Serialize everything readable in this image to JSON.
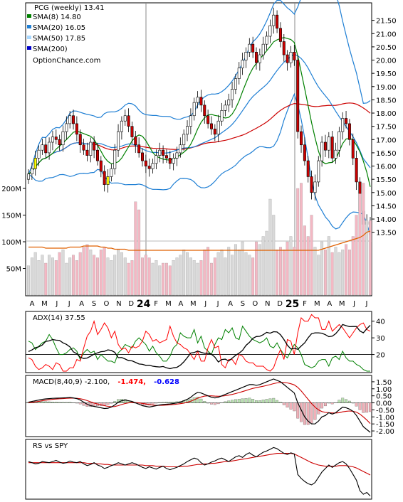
{
  "header": {
    "title": "PCG (weekly) 13.41",
    "site": "OptionChance.com",
    "legend": [
      {
        "label": "SMA(8) 14.80",
        "color": "#008000"
      },
      {
        "label": "SMA(20) 16.05",
        "color": "#1f7fd4"
      },
      {
        "label": "SMA(50) 17.85",
        "color": "#a8d8ff"
      },
      {
        "label": "SMA(200)",
        "color": "#0000cc"
      }
    ]
  },
  "price_axis": {
    "min": 13.25,
    "max": 22.0,
    "ticks": [
      "21.50",
      "21.00",
      "20.50",
      "20.00",
      "19.50",
      "19.00",
      "18.50",
      "18.00",
      "17.50",
      "17.00",
      "16.50",
      "16.00",
      "15.50",
      "15.00",
      "14.50",
      "14.00",
      "13.50"
    ]
  },
  "volume_axis": {
    "ticks": [
      "200M",
      "150M",
      "100M",
      "50M"
    ]
  },
  "month_axis": [
    "A",
    "M",
    "J",
    "J",
    "A",
    "S",
    "O",
    "N",
    "D",
    "24",
    "F",
    "M",
    "A",
    "M",
    "J",
    "J",
    "A",
    "S",
    "O",
    "N",
    "D",
    "25",
    "F",
    "M",
    "A",
    "M",
    "J",
    "J"
  ],
  "adx_panel": {
    "label": "ADX(14) 37.55",
    "ticks": [
      "40",
      "30",
      "20"
    ]
  },
  "macd_panel": {
    "label": "MACD(8,40,9) -2.100,",
    "val2": "-1.474,",
    "val3": "-0.628",
    "val2_color": "#ff0000",
    "val3_color": "#0000ff",
    "ticks": [
      "1.50",
      "1.00",
      "0.50",
      "0.00",
      "-0.50",
      "-1.00",
      "-1.50",
      "-2.00"
    ]
  },
  "rs_panel": {
    "label": "RS vs SPY"
  },
  "colors": {
    "up": "#ffffff",
    "down": "#cc0000",
    "up_alt": "#ffff00",
    "sma8": "#008000",
    "sma20": "#1f7fd4",
    "sma50": "#a8d8ff",
    "bb": "#1f7fd4",
    "ma_red": "#cc0000",
    "vol_up": "#d9d9d9",
    "vol_down": "#f4b8c4",
    "vol_avg": "#e06000"
  },
  "chart_data": {
    "type": "candlestick",
    "title": "PCG (weekly) 13.41",
    "close": [
      15.7,
      15.9,
      16.3,
      16.6,
      16.8,
      16.5,
      16.9,
      17.1,
      17.0,
      16.8,
      17.3,
      17.6,
      17.9,
      17.6,
      17.2,
      16.8,
      16.6,
      16.4,
      16.9,
      16.6,
      16.2,
      15.8,
      15.3,
      15.6,
      15.9,
      16.6,
      17.3,
      17.7,
      17.9,
      17.5,
      17.1,
      16.8,
      16.5,
      16.2,
      16.0,
      15.9,
      16.1,
      16.4,
      16.6,
      16.4,
      16.3,
      16.1,
      16.3,
      16.5,
      16.8,
      17.2,
      17.5,
      17.9,
      18.4,
      18.6,
      18.3,
      17.9,
      17.6,
      17.4,
      17.2,
      17.7,
      18.1,
      18.3,
      18.5,
      18.9,
      19.3,
      19.7,
      20.0,
      20.3,
      20.6,
      20.3,
      19.9,
      20.2,
      20.6,
      20.9,
      21.3,
      21.7,
      21.2,
      20.7,
      20.2,
      19.9,
      20.3,
      20.0,
      17.3,
      16.8,
      16.2,
      15.6,
      15.0,
      15.4,
      16.2,
      16.9,
      16.6,
      17.1,
      16.3,
      16.6,
      17.3,
      17.8,
      17.6,
      17.0,
      16.3,
      15.4,
      14.3,
      13.8,
      13.9,
      13.41
    ],
    "up_alt": [
      0,
      0,
      1,
      0,
      0,
      0,
      0,
      0,
      0,
      0,
      0,
      0,
      0,
      0,
      0,
      0,
      0,
      0,
      0,
      0,
      0,
      0,
      0,
      1,
      0,
      0,
      0,
      0,
      0,
      0,
      0,
      0,
      0,
      0,
      0,
      0,
      0,
      0,
      0,
      0,
      0,
      0,
      0,
      0,
      0,
      0,
      0,
      0,
      0,
      0,
      0,
      0,
      0,
      0,
      0,
      0,
      0,
      0,
      0,
      0,
      0,
      0,
      0,
      0,
      0,
      0,
      0,
      0,
      0,
      0,
      0,
      0,
      0,
      0,
      0,
      0,
      0,
      0,
      0,
      0,
      0,
      0,
      0,
      0,
      0,
      0,
      0,
      0,
      0,
      0,
      0,
      0,
      0,
      0,
      0,
      0,
      0,
      0,
      0,
      0
    ],
    "volume": [
      55,
      70,
      80,
      65,
      75,
      60,
      75,
      70,
      65,
      80,
      85,
      60,
      70,
      75,
      65,
      80,
      90,
      95,
      85,
      75,
      70,
      85,
      90,
      70,
      65,
      75,
      85,
      80,
      70,
      60,
      65,
      175,
      160,
      70,
      75,
      70,
      60,
      65,
      55,
      60,
      60,
      55,
      65,
      70,
      75,
      85,
      80,
      70,
      65,
      60,
      65,
      85,
      90,
      60,
      70,
      80,
      85,
      70,
      90,
      75,
      95,
      85,
      100,
      80,
      75,
      70,
      100,
      95,
      110,
      120,
      180,
      150,
      85,
      90,
      85,
      100,
      110,
      90,
      200,
      210,
      130,
      110,
      150,
      90,
      75,
      100,
      85,
      110,
      80,
      90,
      80,
      85,
      95,
      85,
      110,
      150,
      190,
      210,
      140,
      140
    ],
    "vol_avg": [
      90,
      90,
      90,
      90,
      90,
      88,
      88,
      88,
      88,
      88,
      88,
      88,
      90,
      90,
      90,
      90,
      92,
      92,
      92,
      92,
      92,
      90,
      90,
      88,
      88,
      86,
      86,
      86,
      86,
      84,
      84,
      84,
      84,
      84,
      84,
      84,
      84,
      84,
      84,
      84,
      84,
      84,
      84,
      84,
      84,
      84,
      84,
      84,
      84,
      84,
      84,
      84,
      84,
      84,
      84,
      84,
      84,
      84,
      84,
      84,
      84,
      84,
      84,
      84,
      84,
      84,
      84,
      84,
      84,
      84,
      84,
      84,
      84,
      84,
      84,
      84,
      84,
      84,
      84,
      84,
      84,
      84,
      84,
      84,
      84,
      86,
      88,
      90,
      92,
      94,
      96,
      98,
      100,
      102,
      104,
      106,
      108,
      112,
      118,
      120
    ],
    "adx": [
      21.8,
      22.7,
      24.1,
      24.6,
      25.7,
      27.9,
      28.2,
      29.0,
      28.6,
      28.5,
      27.0,
      26.1,
      24.6,
      21.6,
      20.5,
      18.4,
      17.6,
      17.9,
      19.0,
      20.2,
      21.0,
      21.7,
      21.9,
      22.8,
      22.4,
      21.3,
      18.1,
      18.2,
      17.3,
      16.3,
      16.2,
      15.3,
      14.3,
      14.1,
      13.5,
      13.6,
      13.0,
      12.7,
      12.5,
      12.8,
      12.0,
      11.5,
      12.0,
      12.3,
      13.6,
      15.6,
      18.1,
      20.9,
      21.2,
      22.1,
      21.3,
      20.7,
      20.8,
      20.2,
      18.4,
      15.5,
      17.0,
      17.2,
      16.1,
      17.8,
      19.5,
      20.8,
      22.5,
      25.5,
      27.3,
      29.7,
      30.8,
      30.9,
      31.9,
      33.3,
      32.8,
      33.7,
      33.5,
      31.9,
      29.0,
      25.6,
      23.3,
      23.8,
      23.1,
      25.1,
      27.0,
      30.0,
      32.5,
      33.0,
      33.0,
      32.8,
      31.9,
      30.7,
      31.0,
      32.5,
      35.0,
      38.0,
      37.3,
      36.7,
      36.8,
      36.8,
      34.1,
      33.0,
      35.5,
      37.55
    ],
    "di_plus": [
      28,
      27,
      23,
      25,
      27,
      28,
      32,
      29,
      24,
      20,
      20,
      21,
      23,
      24,
      22,
      17,
      21,
      23,
      21,
      22,
      17,
      20,
      18,
      16,
      16,
      15,
      21,
      23,
      26,
      25,
      24,
      28,
      30,
      28,
      26,
      22,
      25,
      21,
      19,
      16,
      16,
      19,
      24,
      26,
      33,
      31,
      30,
      30,
      35,
      27,
      31,
      24,
      22,
      20,
      26,
      30,
      29,
      35,
      33,
      36,
      30,
      29,
      37,
      34,
      31,
      29,
      28,
      27,
      28,
      30,
      25,
      24,
      27,
      23,
      20,
      18,
      22,
      26,
      24,
      20,
      14,
      13,
      12,
      13,
      16,
      17,
      17,
      13,
      18,
      19,
      17,
      22,
      18,
      16,
      16,
      14,
      13,
      11,
      10,
      10
    ],
    "di_minus": [
      18,
      17,
      13,
      11,
      12,
      14,
      13,
      11,
      15,
      14,
      10,
      10,
      12,
      12,
      17,
      16,
      24,
      31,
      34,
      40,
      32,
      35,
      39,
      36,
      30,
      34,
      26,
      23,
      24,
      21,
      25,
      24,
      25,
      28,
      34,
      32,
      28,
      29,
      27,
      28,
      29,
      37,
      31,
      27,
      26,
      24,
      23,
      20,
      17,
      22,
      16,
      16,
      24,
      29,
      24,
      25,
      14,
      12,
      17,
      17,
      14,
      20,
      19,
      16,
      15,
      15,
      13,
      13,
      13,
      11,
      10,
      12,
      18,
      23,
      17,
      29,
      28,
      20,
      33,
      42,
      40,
      40,
      44,
      42,
      42,
      35,
      35,
      40,
      34,
      36,
      38,
      36,
      33,
      30,
      33,
      36,
      38,
      39,
      35,
      34
    ],
    "macd_line": [
      0.05,
      0.1,
      0.15,
      0.2,
      0.25,
      0.28,
      0.3,
      0.32,
      0.33,
      0.34,
      0.35,
      0.36,
      0.38,
      0.35,
      0.3,
      0.2,
      0.05,
      -0.1,
      -0.2,
      -0.25,
      -0.3,
      -0.35,
      -0.4,
      -0.38,
      -0.3,
      -0.15,
      0.05,
      0.15,
      0.2,
      0.15,
      0.1,
      0.0,
      -0.1,
      -0.2,
      -0.25,
      -0.3,
      -0.25,
      -0.2,
      -0.15,
      -0.12,
      -0.1,
      -0.08,
      -0.05,
      0.0,
      0.05,
      0.15,
      0.25,
      0.4,
      0.6,
      0.75,
      0.7,
      0.6,
      0.5,
      0.4,
      0.35,
      0.4,
      0.5,
      0.6,
      0.7,
      0.8,
      0.9,
      1.0,
      1.1,
      1.2,
      1.3,
      1.3,
      1.25,
      1.3,
      1.4,
      1.5,
      1.6,
      1.7,
      1.6,
      1.5,
      1.3,
      1.1,
      0.9,
      0.7,
      0.0,
      -0.5,
      -1.0,
      -1.3,
      -1.5,
      -1.5,
      -1.3,
      -1.0,
      -0.9,
      -0.7,
      -0.8,
      -0.7,
      -0.5,
      -0.3,
      -0.35,
      -0.45,
      -0.6,
      -0.9,
      -1.3,
      -1.7,
      -1.9,
      -2.1
    ],
    "macd_signal": [
      0.0,
      0.03,
      0.07,
      0.11,
      0.15,
      0.19,
      0.22,
      0.25,
      0.27,
      0.29,
      0.3,
      0.32,
      0.33,
      0.33,
      0.32,
      0.29,
      0.24,
      0.16,
      0.07,
      -0.01,
      -0.08,
      -0.14,
      -0.2,
      -0.25,
      -0.27,
      -0.26,
      -0.2,
      -0.12,
      -0.05,
      0.0,
      0.02,
      0.02,
      0.0,
      -0.04,
      -0.08,
      -0.13,
      -0.16,
      -0.18,
      -0.18,
      -0.17,
      -0.16,
      -0.14,
      -0.12,
      -0.09,
      -0.06,
      -0.02,
      0.04,
      0.12,
      0.22,
      0.33,
      0.42,
      0.48,
      0.5,
      0.5,
      0.48,
      0.47,
      0.48,
      0.51,
      0.55,
      0.6,
      0.66,
      0.73,
      0.8,
      0.88,
      0.96,
      1.03,
      1.08,
      1.13,
      1.18,
      1.24,
      1.3,
      1.37,
      1.42,
      1.45,
      1.45,
      1.42,
      1.36,
      1.28,
      1.1,
      0.85,
      0.55,
      0.25,
      -0.05,
      -0.3,
      -0.5,
      -0.62,
      -0.68,
      -0.7,
      -0.72,
      -0.72,
      -0.7,
      -0.64,
      -0.6,
      -0.58,
      -0.6,
      -0.66,
      -0.8,
      -1.0,
      -1.22,
      -1.47
    ],
    "rs": [
      0.62,
      0.6,
      0.58,
      0.59,
      0.62,
      0.61,
      0.6,
      0.62,
      0.64,
      0.61,
      0.59,
      0.6,
      0.63,
      0.61,
      0.6,
      0.62,
      0.58,
      0.55,
      0.57,
      0.6,
      0.56,
      0.54,
      0.5,
      0.52,
      0.55,
      0.57,
      0.6,
      0.58,
      0.56,
      0.58,
      0.6,
      0.58,
      0.55,
      0.52,
      0.5,
      0.53,
      0.51,
      0.49,
      0.52,
      0.54,
      0.5,
      0.48,
      0.5,
      0.52,
      0.55,
      0.58,
      0.62,
      0.65,
      0.68,
      0.66,
      0.6,
      0.56,
      0.58,
      0.61,
      0.63,
      0.66,
      0.68,
      0.65,
      0.62,
      0.66,
      0.7,
      0.72,
      0.69,
      0.74,
      0.77,
      0.73,
      0.7,
      0.74,
      0.78,
      0.8,
      0.83,
      0.86,
      0.84,
      0.8,
      0.76,
      0.74,
      0.77,
      0.75,
      0.4,
      0.33,
      0.28,
      0.24,
      0.22,
      0.26,
      0.35,
      0.44,
      0.5,
      0.56,
      0.52,
      0.56,
      0.6,
      0.62,
      0.58,
      0.5,
      0.4,
      0.3,
      0.12,
      0.06,
      0.09,
      0.03
    ],
    "rs_ma": [
      0.6,
      0.6,
      0.6,
      0.6,
      0.6,
      0.6,
      0.6,
      0.6,
      0.6,
      0.6,
      0.6,
      0.6,
      0.6,
      0.6,
      0.6,
      0.6,
      0.6,
      0.59,
      0.59,
      0.59,
      0.58,
      0.58,
      0.57,
      0.57,
      0.56,
      0.56,
      0.56,
      0.56,
      0.56,
      0.56,
      0.56,
      0.56,
      0.56,
      0.56,
      0.55,
      0.55,
      0.55,
      0.54,
      0.54,
      0.54,
      0.53,
      0.53,
      0.53,
      0.53,
      0.53,
      0.54,
      0.54,
      0.55,
      0.56,
      0.57,
      0.57,
      0.58,
      0.58,
      0.59,
      0.59,
      0.6,
      0.61,
      0.62,
      0.62,
      0.63,
      0.64,
      0.65,
      0.66,
      0.67,
      0.68,
      0.69,
      0.7,
      0.71,
      0.72,
      0.73,
      0.74,
      0.75,
      0.76,
      0.76,
      0.76,
      0.76,
      0.76,
      0.75,
      0.72,
      0.69,
      0.66,
      0.63,
      0.6,
      0.58,
      0.56,
      0.55,
      0.54,
      0.54,
      0.54,
      0.54,
      0.55,
      0.55,
      0.55,
      0.54,
      0.53,
      0.51,
      0.48,
      0.45,
      0.42,
      0.39
    ]
  }
}
